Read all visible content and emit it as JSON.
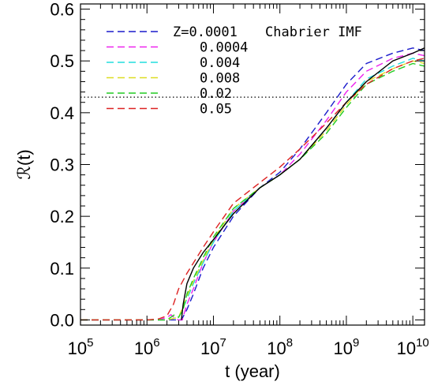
{
  "chart_data": {
    "type": "line",
    "title": "",
    "xlabel": "t (year)",
    "ylabel": "ℛ(t)",
    "xscale": "log",
    "xlim": [
      100000,
      15000000000
    ],
    "ylim": [
      -0.01,
      0.61
    ],
    "x_ticks": [
      {
        "value": 100000,
        "base": "10",
        "exp": "5"
      },
      {
        "value": 1000000,
        "base": "10",
        "exp": "6"
      },
      {
        "value": 10000000,
        "base": "10",
        "exp": "7"
      },
      {
        "value": 100000000,
        "base": "10",
        "exp": "8"
      },
      {
        "value": 1000000000,
        "base": "10",
        "exp": "9"
      },
      {
        "value": 10000000000,
        "base": "10",
        "exp": "10"
      }
    ],
    "y_ticks": [
      {
        "value": 0.0,
        "label": "0.0"
      },
      {
        "value": 0.1,
        "label": "0.1"
      },
      {
        "value": 0.2,
        "label": "0.2"
      },
      {
        "value": 0.3,
        "label": "0.3"
      },
      {
        "value": 0.4,
        "label": "0.4"
      },
      {
        "value": 0.5,
        "label": "0.5"
      },
      {
        "value": 0.6,
        "label": "0.6"
      }
    ],
    "reference_line": {
      "y": 0.43,
      "style": "dotted",
      "color": "#000000"
    },
    "legend_title": "Chabrier IMF",
    "legend_position": "top-left",
    "series": [
      {
        "name": "Z=0.0001",
        "color": "#1a1acc",
        "dash": "dashed",
        "x": [
          100000,
          1500000,
          2500000,
          3000000,
          3300000,
          4000000,
          5000000,
          7000000,
          10000000,
          20000000,
          50000000,
          100000000,
          200000000,
          500000000,
          1000000000,
          2000000000,
          5000000000,
          10000000000,
          15000000000
        ],
        "y": [
          0.0,
          0.0,
          0.0,
          0.0,
          0.0,
          0.02,
          0.05,
          0.1,
          0.14,
          0.2,
          0.255,
          0.285,
          0.33,
          0.4,
          0.455,
          0.495,
          0.515,
          0.525,
          0.52
        ]
      },
      {
        "name": "0.0004",
        "color": "#ee22ee",
        "dash": "dashed",
        "x": [
          100000,
          1500000,
          2000000,
          2300000,
          2700000,
          3000000,
          3400000,
          4000000,
          5000000,
          7000000,
          10000000,
          20000000,
          50000000,
          100000000,
          200000000,
          500000000,
          1000000000,
          2000000000,
          5000000000,
          10000000000,
          15000000000
        ],
        "y": [
          0.0,
          0.0,
          0.005,
          0.01,
          0.002,
          0.0,
          0.0,
          0.03,
          0.06,
          0.11,
          0.15,
          0.21,
          0.255,
          0.28,
          0.32,
          0.385,
          0.44,
          0.48,
          0.505,
          0.515,
          0.51
        ]
      },
      {
        "name": "0.004",
        "color": "#22dddd",
        "dash": "dashed",
        "x": [
          100000,
          2000000,
          3000000,
          4000000,
          5000000,
          7000000,
          10000000,
          20000000,
          50000000,
          100000000,
          200000000,
          500000000,
          1000000000,
          2000000000,
          5000000000,
          10000000000,
          15000000000
        ],
        "y": [
          0.0,
          0.0,
          0.005,
          0.04,
          0.07,
          0.11,
          0.15,
          0.21,
          0.255,
          0.28,
          0.31,
          0.37,
          0.42,
          0.465,
          0.49,
          0.505,
          0.5
        ]
      },
      {
        "name": "0.008",
        "color": "#dddd22",
        "dash": "dashed",
        "x": [
          100000,
          2000000,
          3000000,
          4000000,
          5000000,
          7000000,
          10000000,
          20000000,
          50000000,
          100000000,
          200000000,
          500000000,
          1000000000,
          2000000000,
          5000000000,
          10000000000,
          15000000000
        ],
        "y": [
          0.0,
          0.0,
          0.005,
          0.045,
          0.075,
          0.115,
          0.155,
          0.215,
          0.255,
          0.28,
          0.31,
          0.365,
          0.415,
          0.46,
          0.485,
          0.5,
          0.495
        ]
      },
      {
        "name": "0.02",
        "color": "#22cc22",
        "dash": "dashed",
        "x": [
          100000,
          2000000,
          2600000,
          3000000,
          3500000,
          4000000,
          5000000,
          7000000,
          10000000,
          20000000,
          50000000,
          100000000,
          200000000,
          500000000,
          1000000000,
          2000000000,
          5000000000,
          10000000000,
          15000000000
        ],
        "y": [
          0.0,
          0.0,
          0.01,
          0.005,
          0.02,
          0.05,
          0.08,
          0.12,
          0.16,
          0.215,
          0.255,
          0.28,
          0.31,
          0.36,
          0.41,
          0.455,
          0.48,
          0.495,
          0.49
        ]
      },
      {
        "name": "0.05",
        "color": "#dd2222",
        "dash": "dashed",
        "x": [
          100000,
          1000000,
          1500000,
          2000000,
          2500000,
          3000000,
          4000000,
          5000000,
          7000000,
          10000000,
          20000000,
          50000000,
          100000000,
          200000000,
          500000000,
          1000000000,
          2000000000,
          5000000000,
          10000000000,
          15000000000
        ],
        "y": [
          0.0,
          0.0,
          0.002,
          0.008,
          0.03,
          0.06,
          0.09,
          0.11,
          0.14,
          0.17,
          0.225,
          0.265,
          0.295,
          0.33,
          0.38,
          0.42,
          0.455,
          0.485,
          0.5,
          0.505
        ]
      },
      {
        "name": "",
        "color": "#000000",
        "dash": "solid",
        "x": [
          3300000,
          3500000,
          4000000,
          5000000,
          7000000,
          10000000,
          20000000,
          50000000,
          100000000,
          200000000,
          500000000,
          1000000000,
          2000000000,
          5000000000,
          10000000000,
          15000000000
        ],
        "y": [
          0.0,
          0.03,
          0.07,
          0.1,
          0.13,
          0.155,
          0.205,
          0.255,
          0.28,
          0.31,
          0.37,
          0.42,
          0.46,
          0.5,
          0.515,
          0.525
        ]
      }
    ]
  }
}
